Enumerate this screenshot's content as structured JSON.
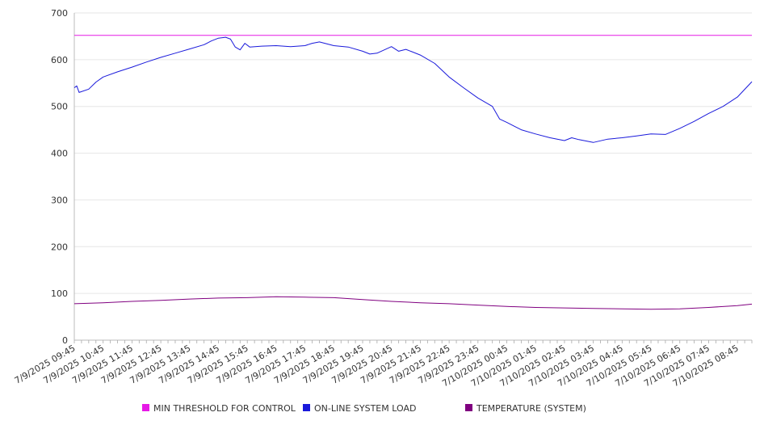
{
  "chart_data": {
    "type": "line",
    "title": "",
    "xlabel": "",
    "ylabel": "",
    "ylim": [
      0,
      700
    ],
    "yticks": [
      0,
      100,
      200,
      300,
      400,
      500,
      600,
      700
    ],
    "grid": "horizontal",
    "legend_position": "bottom",
    "x_tick_labels": [
      "7/9/2025 09:45",
      "7/9/2025 10:45",
      "7/9/2025 11:45",
      "7/9/2025 12:45",
      "7/9/2025 13:45",
      "7/9/2025 14:45",
      "7/9/2025 15:45",
      "7/9/2025 16:45",
      "7/9/2025 17:45",
      "7/9/2025 18:45",
      "7/9/2025 19:45",
      "7/9/2025 20:45",
      "7/9/2025 21:45",
      "7/9/2025 22:45",
      "7/9/2025 23:45",
      "7/10/2025 00:45",
      "7/10/2025 01:45",
      "7/10/2025 02:45",
      "7/10/2025 03:45",
      "7/10/2025 04:45",
      "7/10/2025 05:45",
      "7/10/2025 06:45",
      "7/10/2025 07:45",
      "7/10/2025 08:45"
    ],
    "series": [
      {
        "name": "MIN THRESHOLD FOR CONTROL",
        "color": "#e619e6",
        "x": [
          "7/9/2025 09:45",
          "7/10/2025 09:15"
        ],
        "values": [
          652,
          652
        ]
      },
      {
        "name": "ON-LINE SYSTEM LOAD",
        "color": "#1a1adb",
        "x": [
          "7/9/2025 09:45",
          "7/9/2025 09:50",
          "7/9/2025 09:55",
          "7/9/2025 10:15",
          "7/9/2025 10:30",
          "7/9/2025 10:45",
          "7/9/2025 11:15",
          "7/9/2025 11:45",
          "7/9/2025 12:15",
          "7/9/2025 12:45",
          "7/9/2025 13:15",
          "7/9/2025 13:45",
          "7/9/2025 14:15",
          "7/9/2025 14:30",
          "7/9/2025 14:45",
          "7/9/2025 15:00",
          "7/9/2025 15:10",
          "7/9/2025 15:20",
          "7/9/2025 15:30",
          "7/9/2025 15:40",
          "7/9/2025 15:50",
          "7/9/2025 16:15",
          "7/9/2025 16:45",
          "7/9/2025 17:15",
          "7/9/2025 17:45",
          "7/9/2025 18:00",
          "7/9/2025 18:15",
          "7/9/2025 18:45",
          "7/9/2025 19:15",
          "7/9/2025 19:45",
          "7/9/2025 20:00",
          "7/9/2025 20:15",
          "7/9/2025 20:45",
          "7/9/2025 21:00",
          "7/9/2025 21:15",
          "7/9/2025 21:45",
          "7/9/2025 22:15",
          "7/9/2025 22:45",
          "7/9/2025 23:15",
          "7/9/2025 23:45",
          "7/10/2025 00:15",
          "7/10/2025 00:30",
          "7/10/2025 00:45",
          "7/10/2025 01:15",
          "7/10/2025 01:45",
          "7/10/2025 02:15",
          "7/10/2025 02:45",
          "7/10/2025 03:00",
          "7/10/2025 03:15",
          "7/10/2025 03:45",
          "7/10/2025 04:15",
          "7/10/2025 04:45",
          "7/10/2025 05:15",
          "7/10/2025 05:45",
          "7/10/2025 06:15",
          "7/10/2025 06:45",
          "7/10/2025 07:15",
          "7/10/2025 07:45",
          "7/10/2025 08:15",
          "7/10/2025 08:45",
          "7/10/2025 09:15"
        ],
        "values": [
          540,
          544,
          530,
          537,
          552,
          563,
          574,
          584,
          595,
          605,
          614,
          623,
          632,
          640,
          646,
          648,
          644,
          627,
          621,
          635,
          627,
          629,
          630,
          628,
          630,
          635,
          638,
          630,
          627,
          618,
          612,
          614,
          628,
          618,
          622,
          610,
          592,
          563,
          540,
          518,
          500,
          473,
          466,
          450,
          441,
          433,
          427,
          433,
          429,
          423,
          430,
          433,
          437,
          441,
          440,
          453,
          468,
          485,
          500,
          520,
          553
        ]
      },
      {
        "name": "TEMPERATURE (SYSTEM)",
        "color": "#800080",
        "x": [
          "7/9/2025 09:45",
          "7/9/2025 10:45",
          "7/9/2025 11:45",
          "7/9/2025 12:45",
          "7/9/2025 13:45",
          "7/9/2025 14:45",
          "7/9/2025 15:45",
          "7/9/2025 16:45",
          "7/9/2025 17:45",
          "7/9/2025 18:45",
          "7/9/2025 19:45",
          "7/9/2025 20:45",
          "7/9/2025 21:45",
          "7/9/2025 22:45",
          "7/9/2025 23:45",
          "7/10/2025 00:45",
          "7/10/2025 01:45",
          "7/10/2025 02:45",
          "7/10/2025 03:45",
          "7/10/2025 04:45",
          "7/10/2025 05:45",
          "7/10/2025 06:45",
          "7/10/2025 07:45",
          "7/10/2025 08:45",
          "7/10/2025 09:15"
        ],
        "values": [
          78,
          80,
          83,
          85,
          88,
          90,
          91,
          93,
          92,
          91,
          87,
          83,
          80,
          78,
          75,
          72,
          70,
          69,
          68,
          67,
          66,
          67,
          70,
          74,
          77
        ]
      }
    ]
  }
}
